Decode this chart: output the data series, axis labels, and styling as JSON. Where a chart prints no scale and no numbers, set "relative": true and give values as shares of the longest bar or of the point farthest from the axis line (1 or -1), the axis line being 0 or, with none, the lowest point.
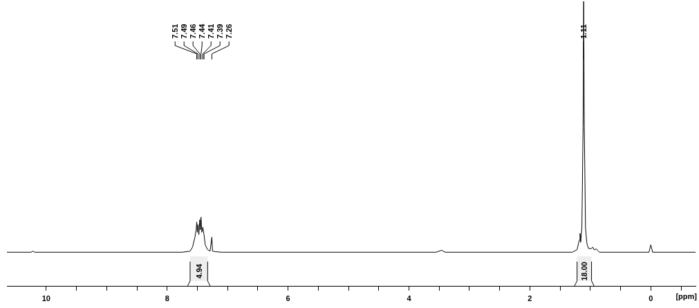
{
  "chart_data": {
    "type": "line",
    "relative": true,
    "xlabel": "[ppm]",
    "xlim": [
      10.65,
      -0.74
    ],
    "xticks": [
      10,
      {
        "value": 9.5,
        "label": null
      },
      {
        "value": 9,
        "label": null
      },
      {
        "value": 8.5,
        "label": null
      },
      8,
      {
        "value": 7.5,
        "label": null
      },
      {
        "value": 7,
        "label": null
      },
      {
        "value": 6.5,
        "label": null
      },
      6,
      {
        "value": 5.5,
        "label": null
      },
      {
        "value": 5,
        "label": null
      },
      {
        "value": 4.5,
        "label": null
      },
      4,
      {
        "value": 3.5,
        "label": null
      },
      {
        "value": 3,
        "label": null
      },
      {
        "value": 2.5,
        "label": null
      },
      2,
      {
        "value": 1.5,
        "label": null
      },
      {
        "value": 1,
        "label": null
      },
      {
        "value": 0.5,
        "label": null
      },
      0,
      {
        "value": -0.5,
        "label": null
      }
    ],
    "series": [
      {
        "color": "#000000",
        "x": [
          10.65,
          10.25,
          10.22,
          10.19,
          7.75,
          7.62,
          7.58,
          7.54,
          7.52,
          7.51,
          7.5,
          7.49,
          7.475,
          7.46,
          7.45,
          7.44,
          7.425,
          7.41,
          7.39,
          7.37,
          7.33,
          7.29,
          7.26,
          7.25,
          7.2,
          7.1,
          3.55,
          3.46,
          3.4,
          1.3,
          1.22,
          1.18,
          1.17,
          1.16,
          1.14,
          1.12,
          1.11,
          1.1,
          1.08,
          1.06,
          1.05,
          1.03,
          0.98,
          0.96,
          0.94,
          0.9,
          0.85,
          0.03,
          0.01,
          0,
          -0.01,
          -0.03,
          -0.74
        ],
        "values": [
          0.12,
          0.12,
          0.124,
          0.12,
          0.12,
          0.124,
          0.138,
          0.173,
          0.199,
          0.226,
          0.19,
          0.217,
          0.182,
          0.234,
          0.199,
          0.243,
          0.19,
          0.208,
          0.182,
          0.146,
          0.129,
          0.124,
          0.173,
          0.124,
          0.122,
          0.12,
          0.12,
          0.127,
          0.12,
          0.12,
          0.129,
          0.164,
          0.186,
          0.155,
          0.208,
          0.56,
          1,
          0.56,
          0.208,
          0.155,
          0.146,
          0.133,
          0.133,
          0.138,
          0.129,
          0.131,
          0.12,
          0.12,
          0.138,
          0.146,
          0.138,
          0.12,
          0.12
        ]
      }
    ],
    "annotations": [
      {
        "text": "7.51",
        "x": 7.51
      },
      {
        "text": "7.49",
        "x": 7.49
      },
      {
        "text": "7.46",
        "x": 7.46
      },
      {
        "text": "7.44",
        "x": 7.44
      },
      {
        "text": "7.41",
        "x": 7.41
      },
      {
        "text": "7.39",
        "x": 7.39
      },
      {
        "text": "7.26",
        "x": 7.26
      },
      {
        "text": "1.11",
        "x": 1.11
      }
    ],
    "bands": [
      {
        "axis": "x",
        "from": 7.62,
        "to": 7.33,
        "label": "4.94",
        "color": "#eeeeee"
      },
      {
        "axis": "x",
        "from": 1.22,
        "to": 0.98,
        "label": "18.00",
        "color": "#eeeeee"
      }
    ]
  }
}
